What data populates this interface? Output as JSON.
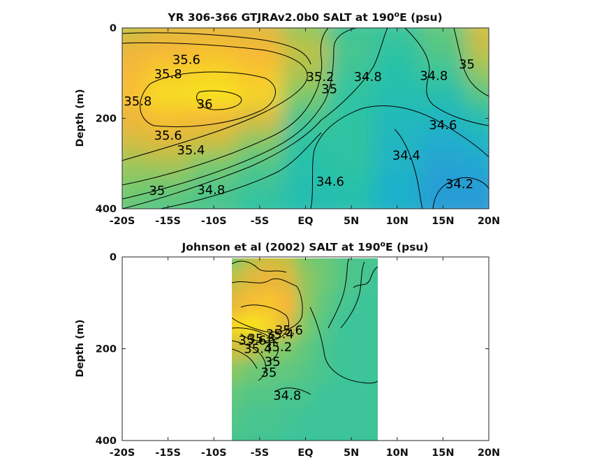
{
  "chart_data": [
    {
      "type": "heatmap",
      "title_prefix": "YR 306-366 GTJRAv2.0b0 SALT at 190",
      "title_sup": "o",
      "title_suffix": "E (psu)",
      "xlabel": "",
      "ylabel": "Depth (m)",
      "xlim": [
        -20,
        20
      ],
      "ylim": [
        400,
        0
      ],
      "x_ticks": [
        -20,
        -15,
        -10,
        -5,
        0,
        5,
        10,
        15,
        20
      ],
      "x_tick_labels": [
        "-20S",
        "-15S",
        "-10S",
        "-5S",
        "EQ",
        "5N",
        "10N",
        "15N",
        "20N"
      ],
      "y_ticks": [
        0,
        200,
        400
      ],
      "y_tick_labels": [
        "0",
        "200",
        "400"
      ],
      "colormap": [
        "#2f8fdc",
        "#1fb0cc",
        "#27c2a8",
        "#7bc96a",
        "#c8c041",
        "#f6b23a",
        "#f8e31c"
      ],
      "value_range": [
        34.0,
        36.0
      ],
      "data_region": [
        -20,
        20
      ],
      "grid_x": [
        -20,
        -15,
        -10,
        -5,
        0,
        5,
        10,
        15,
        20
      ],
      "grid_y": [
        0,
        50,
        100,
        150,
        200,
        250,
        300,
        350,
        400
      ],
      "values": [
        [
          35.3,
          35.5,
          35.55,
          35.5,
          35.1,
          34.75,
          34.75,
          34.9,
          35.4
        ],
        [
          35.6,
          35.7,
          35.75,
          35.7,
          35.3,
          34.8,
          34.7,
          34.85,
          35.3
        ],
        [
          35.7,
          35.85,
          35.9,
          35.8,
          35.2,
          34.75,
          34.65,
          34.75,
          35.1
        ],
        [
          35.75,
          35.95,
          36.05,
          35.9,
          35.0,
          34.7,
          34.6,
          34.6,
          34.85
        ],
        [
          35.6,
          35.75,
          35.7,
          35.45,
          34.8,
          34.7,
          34.5,
          34.45,
          34.6
        ],
        [
          35.4,
          35.5,
          35.35,
          35.05,
          34.7,
          34.7,
          34.45,
          34.3,
          34.4
        ],
        [
          35.15,
          35.2,
          35.0,
          34.85,
          34.65,
          34.7,
          34.4,
          34.2,
          34.25
        ],
        [
          35.0,
          34.95,
          34.85,
          34.75,
          34.6,
          34.65,
          34.35,
          34.15,
          34.15
        ],
        [
          34.9,
          34.85,
          34.8,
          34.7,
          34.6,
          34.6,
          34.35,
          34.15,
          34.1
        ]
      ],
      "contour_labels": [
        {
          "text": "35.6",
          "x": -13.0,
          "y": 70
        },
        {
          "text": "35.8",
          "x": -15.0,
          "y": 102
        },
        {
          "text": "35.8",
          "x": -18.3,
          "y": 162
        },
        {
          "text": "36",
          "x": -11.0,
          "y": 168
        },
        {
          "text": "35.2",
          "x": 1.6,
          "y": 108
        },
        {
          "text": "35",
          "x": 2.6,
          "y": 135
        },
        {
          "text": "34.8",
          "x": 6.8,
          "y": 108
        },
        {
          "text": "34.8",
          "x": 14.0,
          "y": 106
        },
        {
          "text": "35",
          "x": 17.6,
          "y": 80
        },
        {
          "text": "34.6",
          "x": 15.0,
          "y": 215
        },
        {
          "text": "34.4",
          "x": 11.0,
          "y": 282
        },
        {
          "text": "34.2",
          "x": 16.8,
          "y": 345
        },
        {
          "text": "35.6",
          "x": -15.0,
          "y": 238
        },
        {
          "text": "35.4",
          "x": -12.5,
          "y": 270
        },
        {
          "text": "35",
          "x": -16.2,
          "y": 360
        },
        {
          "text": "34.8",
          "x": -10.3,
          "y": 358
        },
        {
          "text": "34.6",
          "x": 2.7,
          "y": 340
        }
      ]
    },
    {
      "type": "heatmap",
      "title_prefix": "Johnson et al (2002) SALT at 190",
      "title_sup": "o",
      "title_suffix": "E (psu)",
      "xlabel": "",
      "ylabel": "Depth (m)",
      "xlim": [
        -20,
        20
      ],
      "ylim": [
        400,
        0
      ],
      "x_ticks": [
        -20,
        -15,
        -10,
        -5,
        0,
        5,
        10,
        15,
        20
      ],
      "x_tick_labels": [
        "-20S",
        "-15S",
        "-10S",
        "-5S",
        "EQ",
        "5N",
        "10N",
        "15N",
        "20N"
      ],
      "y_ticks": [
        0,
        200,
        400
      ],
      "y_tick_labels": [
        "0",
        "200",
        "400"
      ],
      "colormap": [
        "#2f8fdc",
        "#1fb0cc",
        "#27c2a8",
        "#7bc96a",
        "#c8c041",
        "#f6b23a",
        "#f8e31c"
      ],
      "value_range": [
        34.0,
        36.0
      ],
      "data_region": [
        -8,
        8
      ],
      "grid_x": [
        -8,
        -6,
        -4,
        -2,
        0,
        2,
        4,
        6,
        8
      ],
      "grid_y": [
        0,
        50,
        100,
        150,
        200,
        250,
        300,
        350,
        400
      ],
      "values": [
        [
          35.0,
          35.25,
          35.4,
          35.3,
          35.0,
          34.95,
          34.85,
          34.8,
          34.8
        ],
        [
          35.3,
          35.5,
          35.6,
          35.5,
          35.1,
          34.95,
          34.85,
          34.8,
          34.75
        ],
        [
          35.55,
          35.75,
          35.8,
          35.7,
          35.1,
          34.9,
          34.8,
          34.75,
          34.75
        ],
        [
          35.9,
          36.0,
          35.9,
          35.5,
          35.0,
          34.85,
          34.75,
          34.75,
          34.75
        ],
        [
          35.4,
          35.3,
          35.1,
          35.0,
          34.9,
          34.8,
          34.75,
          34.75,
          34.75
        ],
        [
          35.05,
          34.95,
          34.9,
          34.9,
          34.85,
          34.8,
          34.75,
          34.75,
          34.75
        ],
        [
          34.9,
          34.85,
          34.85,
          34.8,
          34.8,
          34.75,
          34.75,
          34.75,
          34.75
        ],
        [
          34.85,
          34.8,
          34.8,
          34.78,
          34.75,
          34.75,
          34.75,
          34.75,
          34.75
        ],
        [
          34.8,
          34.78,
          34.78,
          34.75,
          34.75,
          34.75,
          34.75,
          34.75,
          34.75
        ]
      ],
      "contour_labels": [
        {
          "text": "35.4",
          "x": -2.8,
          "y": 168
        },
        {
          "text": "35.6",
          "x": -1.8,
          "y": 160
        },
        {
          "text": "35.8",
          "x": -4.8,
          "y": 178
        },
        {
          "text": "35.6",
          "x": -5.8,
          "y": 182
        },
        {
          "text": "35.4",
          "x": -5.2,
          "y": 200
        },
        {
          "text": "35.2",
          "x": -3.0,
          "y": 196
        },
        {
          "text": "35",
          "x": -3.6,
          "y": 228
        },
        {
          "text": "35",
          "x": -4.0,
          "y": 252
        },
        {
          "text": "34.8",
          "x": -2.0,
          "y": 302
        }
      ]
    }
  ]
}
